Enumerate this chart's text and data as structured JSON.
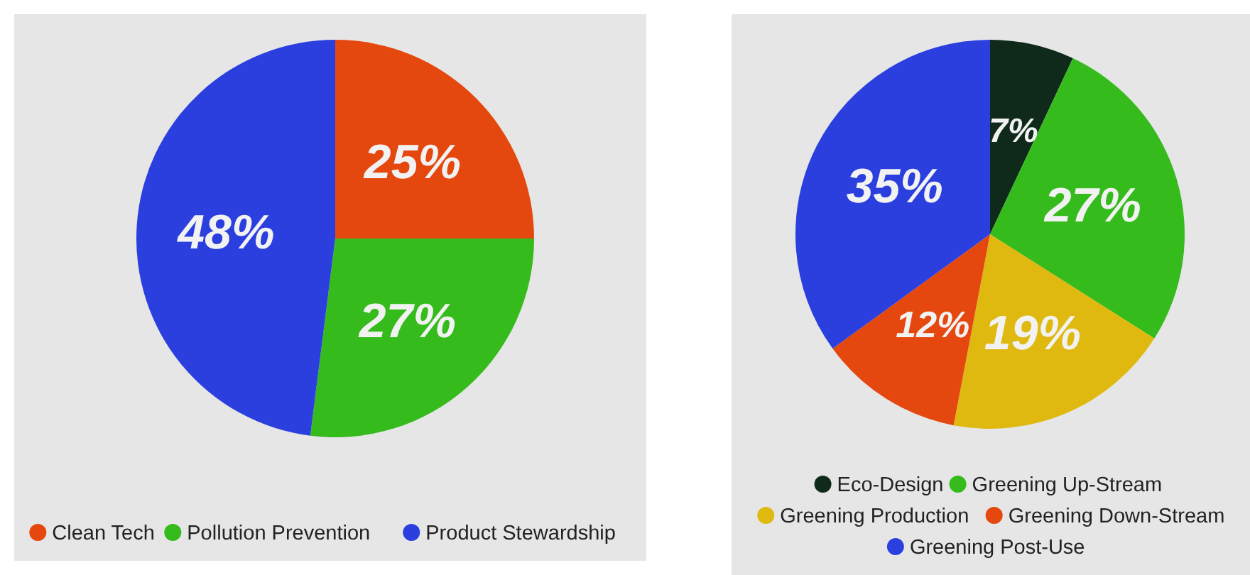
{
  "chart_data": [
    {
      "type": "pie",
      "categories": [
        "Clean Tech",
        "Pollution Prevention",
        "Product Stewardship"
      ],
      "values": [
        25,
        27,
        48
      ],
      "colors": [
        "#e5480e",
        "#35bb1c",
        "#2b3fdf"
      ],
      "value_labels": [
        "25%",
        "27%",
        "48%"
      ],
      "legend": "bottom"
    },
    {
      "type": "pie",
      "categories": [
        "Eco-Design",
        "Greening Up-Stream",
        "Greening Production",
        "Greening Down-Stream",
        "Greening Post-Use"
      ],
      "values": [
        7,
        27,
        19,
        12,
        35
      ],
      "colors": [
        "#0f2a1a",
        "#35bb1c",
        "#dfb90f",
        "#e5480e",
        "#2b3fdf"
      ],
      "value_labels": [
        "7%",
        "27%",
        "19%",
        "12%",
        "35%"
      ],
      "legend": "bottom"
    }
  ]
}
